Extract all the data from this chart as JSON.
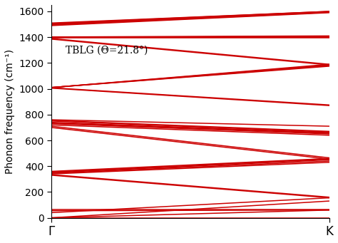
{
  "xlabel_left": "Γ",
  "xlabel_right": "K",
  "ylabel": "Phonon frequency (cm⁻¹)",
  "ylim": [
    0,
    1650
  ],
  "yticks": [
    0,
    200,
    400,
    600,
    800,
    1000,
    1200,
    1400,
    1600
  ],
  "line_color": "#cc0000",
  "line_width": 1.1,
  "background_color": "#ffffff",
  "annotation_text": "TBLG (Θ=21.8°)",
  "figsize": [
    4.74,
    3.41
  ],
  "dpi": 100,
  "bands": [
    {
      "G": 0,
      "K": 0
    },
    {
      "G": 0,
      "K": 60
    },
    {
      "G": 0,
      "K": 130
    },
    {
      "G": 40,
      "K": 155
    },
    {
      "G": 55,
      "K": 60
    },
    {
      "G": 65,
      "K": 65
    },
    {
      "G": 330,
      "K": 155
    },
    {
      "G": 335,
      "K": 160
    },
    {
      "G": 340,
      "K": 430
    },
    {
      "G": 345,
      "K": 440
    },
    {
      "G": 350,
      "K": 450
    },
    {
      "G": 355,
      "K": 455
    },
    {
      "G": 360,
      "K": 460
    },
    {
      "G": 700,
      "K": 455
    },
    {
      "G": 710,
      "K": 465
    },
    {
      "G": 720,
      "K": 640
    },
    {
      "G": 730,
      "K": 650
    },
    {
      "G": 735,
      "K": 655
    },
    {
      "G": 740,
      "K": 660
    },
    {
      "G": 750,
      "K": 665
    },
    {
      "G": 755,
      "K": 670
    },
    {
      "G": 760,
      "K": 710
    },
    {
      "G": 1005,
      "K": 870
    },
    {
      "G": 1008,
      "K": 875
    },
    {
      "G": 1010,
      "K": 1175
    },
    {
      "G": 1010,
      "K": 1180
    },
    {
      "G": 1010,
      "K": 1185
    },
    {
      "G": 1010,
      "K": 1190
    },
    {
      "G": 1385,
      "K": 1185
    },
    {
      "G": 1390,
      "K": 1190
    },
    {
      "G": 1395,
      "K": 1395
    },
    {
      "G": 1398,
      "K": 1400
    },
    {
      "G": 1400,
      "K": 1405
    },
    {
      "G": 1402,
      "K": 1410
    },
    {
      "G": 1490,
      "K": 1590
    },
    {
      "G": 1495,
      "K": 1593
    },
    {
      "G": 1500,
      "K": 1596
    },
    {
      "G": 1503,
      "K": 1598
    },
    {
      "G": 1506,
      "K": 1600
    },
    {
      "G": 1510,
      "K": 1600
    }
  ]
}
